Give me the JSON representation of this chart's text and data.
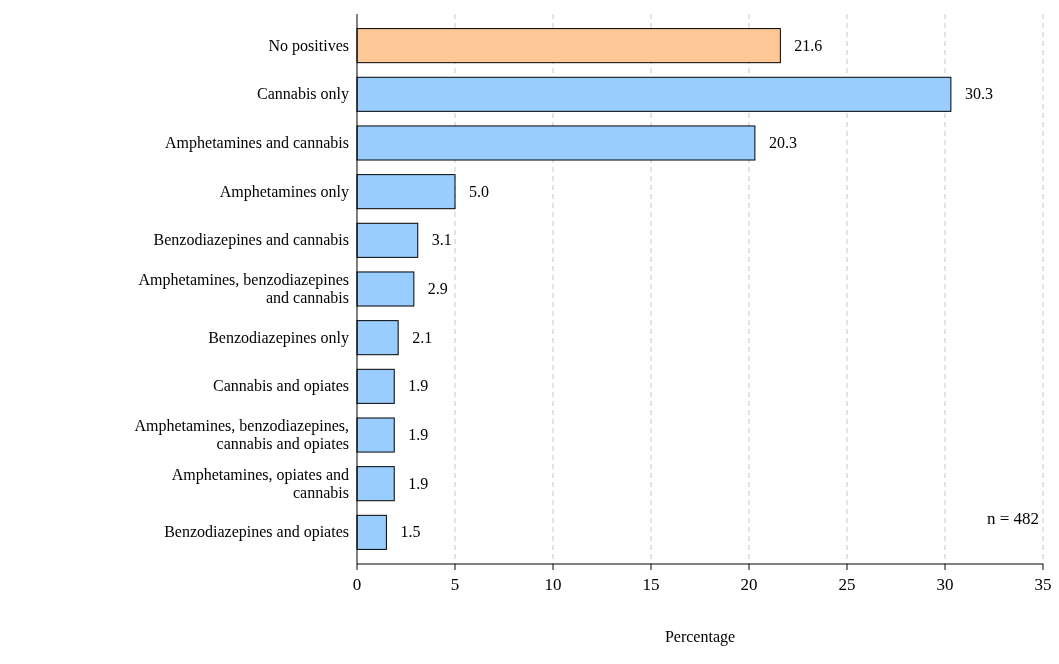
{
  "chart_data": {
    "type": "bar",
    "orientation": "horizontal",
    "categories": [
      "No positives",
      "Cannabis only",
      "Amphetamines and cannabis",
      "Amphetamines only",
      "Benzodiazepines and cannabis",
      "Amphetamines, benzodiazepines and cannabis",
      "Benzodiazepines only",
      "Cannabis and opiates",
      "Amphetamines, benzodiazepines, cannabis and opiates",
      "Amphetamines, opiates and cannabis",
      "Benzodiazepines and opiates"
    ],
    "values": [
      21.6,
      30.3,
      20.3,
      5.0,
      3.1,
      2.9,
      2.1,
      1.9,
      1.9,
      1.9,
      1.5
    ],
    "value_labels": [
      "21.6",
      "30.3",
      "20.3",
      "5.0",
      "3.1",
      "2.9",
      "2.1",
      "1.9",
      "1.9",
      "1.9",
      "1.5"
    ],
    "colors": [
      "#ffc896",
      "#99ccff",
      "#99ccff",
      "#99ccff",
      "#99ccff",
      "#99ccff",
      "#99ccff",
      "#99ccff",
      "#99ccff",
      "#99ccff",
      "#99ccff"
    ],
    "xlim": [
      0,
      35
    ],
    "xticks": [
      0,
      5,
      10,
      15,
      20,
      25,
      30,
      35
    ],
    "xlabel": "Percentage",
    "grid": "x",
    "annotations": [
      "n = 482"
    ]
  }
}
